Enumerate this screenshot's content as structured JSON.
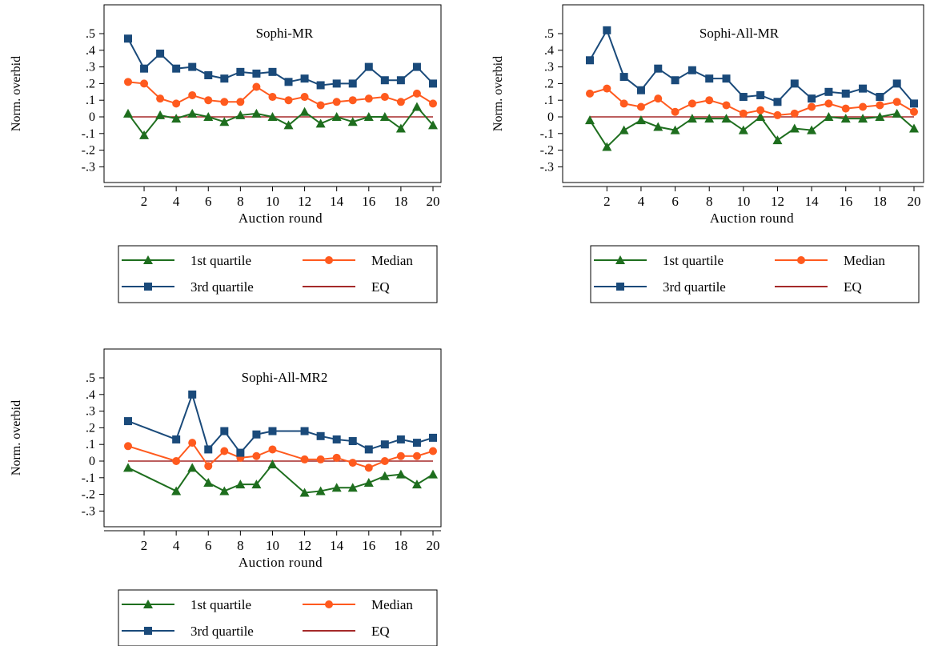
{
  "chart_data": [
    {
      "type": "line",
      "title": "Sophi-MR",
      "xlabel": "Auction round",
      "ylabel": "Norm. overbid",
      "xlim": [
        -0.5,
        20.5
      ],
      "ylim": [
        -0.35,
        0.55
      ],
      "x_ticks": [
        2,
        4,
        6,
        8,
        10,
        12,
        14,
        16,
        18,
        20
      ],
      "x_tick_labels": [
        "2",
        "4",
        "6",
        "8",
        "10",
        "12",
        "14",
        "16",
        "18",
        "20"
      ],
      "y_ticks": [
        -0.3,
        -0.2,
        -0.1,
        0,
        0.1,
        0.2,
        0.3,
        0.4,
        0.5
      ],
      "y_tick_labels": [
        "-.3",
        "-.2",
        "-.1",
        "0",
        ".1",
        ".2",
        ".3",
        ".4",
        ".5"
      ],
      "grid": false,
      "legend_position": "bottom",
      "x": [
        1,
        2,
        3,
        4,
        5,
        6,
        7,
        8,
        9,
        10,
        11,
        12,
        13,
        14,
        15,
        16,
        17,
        18,
        19,
        20
      ],
      "series": [
        {
          "name": "1st quartile",
          "color": "#1e6e1e",
          "marker": "triangle",
          "values": [
            0.02,
            -0.11,
            0.01,
            -0.01,
            0.02,
            0.0,
            -0.03,
            0.01,
            0.02,
            0.0,
            -0.05,
            0.03,
            -0.04,
            0.0,
            -0.03,
            0.0,
            0.0,
            -0.07,
            0.06,
            -0.05
          ]
        },
        {
          "name": "Median",
          "color": "#ff5a1e",
          "marker": "circle",
          "values": [
            0.21,
            0.2,
            0.11,
            0.08,
            0.13,
            0.1,
            0.09,
            0.09,
            0.18,
            0.12,
            0.1,
            0.12,
            0.07,
            0.09,
            0.1,
            0.11,
            0.12,
            0.09,
            0.14,
            0.08
          ]
        },
        {
          "name": "3rd quartile",
          "color": "#1a4a7a",
          "marker": "square",
          "values": [
            0.47,
            0.29,
            0.38,
            0.29,
            0.3,
            0.25,
            0.23,
            0.27,
            0.26,
            0.27,
            0.21,
            0.23,
            0.19,
            0.2,
            0.2,
            0.3,
            0.22,
            0.22,
            0.3,
            0.2
          ]
        },
        {
          "name": "EQ",
          "color": "#a52a2a",
          "marker": "none",
          "values": [
            0,
            0,
            0,
            0,
            0,
            0,
            0,
            0,
            0,
            0,
            0,
            0,
            0,
            0,
            0,
            0,
            0,
            0,
            0,
            0
          ]
        }
      ]
    },
    {
      "type": "line",
      "title": "Sophi-All-MR",
      "xlabel": "Auction round",
      "ylabel": "Norm. overbid",
      "xlim": [
        -0.5,
        20.5
      ],
      "ylim": [
        -0.35,
        0.55
      ],
      "x_ticks": [
        2,
        4,
        6,
        8,
        10,
        12,
        14,
        16,
        18,
        20
      ],
      "x_tick_labels": [
        "2",
        "4",
        "6",
        "8",
        "10",
        "12",
        "14",
        "16",
        "18",
        "20"
      ],
      "y_ticks": [
        -0.3,
        -0.2,
        -0.1,
        0,
        0.1,
        0.2,
        0.3,
        0.4,
        0.5
      ],
      "y_tick_labels": [
        "-.3",
        "-.2",
        "-.1",
        "0",
        ".1",
        ".2",
        ".3",
        ".4",
        ".5"
      ],
      "grid": false,
      "legend_position": "bottom",
      "x": [
        1,
        2,
        3,
        4,
        5,
        6,
        7,
        8,
        9,
        10,
        11,
        12,
        13,
        14,
        15,
        16,
        17,
        18,
        19,
        20
      ],
      "series": [
        {
          "name": "1st quartile",
          "color": "#1e6e1e",
          "marker": "triangle",
          "values": [
            -0.02,
            -0.18,
            -0.08,
            -0.02,
            -0.06,
            -0.08,
            -0.01,
            -0.01,
            -0.01,
            -0.08,
            0.0,
            -0.14,
            -0.07,
            -0.08,
            0.0,
            -0.01,
            -0.01,
            0.0,
            0.02,
            -0.07
          ]
        },
        {
          "name": "Median",
          "color": "#ff5a1e",
          "marker": "circle",
          "values": [
            0.14,
            0.17,
            0.08,
            0.06,
            0.11,
            0.03,
            0.08,
            0.1,
            0.07,
            0.02,
            0.04,
            0.01,
            0.02,
            0.06,
            0.08,
            0.05,
            0.06,
            0.07,
            0.09,
            0.03
          ]
        },
        {
          "name": "3rd quartile",
          "color": "#1a4a7a",
          "marker": "square",
          "values": [
            0.34,
            0.52,
            0.24,
            0.16,
            0.29,
            0.22,
            0.28,
            0.23,
            0.23,
            0.12,
            0.13,
            0.09,
            0.2,
            0.11,
            0.15,
            0.14,
            0.17,
            0.12,
            0.2,
            0.08
          ]
        },
        {
          "name": "EQ",
          "color": "#a52a2a",
          "marker": "none",
          "values": [
            0,
            0,
            0,
            0,
            0,
            0,
            0,
            0,
            0,
            0,
            0,
            0,
            0,
            0,
            0,
            0,
            0,
            0,
            0,
            0
          ]
        }
      ]
    },
    {
      "type": "line",
      "title": "Sophi-All-MR2",
      "xlabel": "Auction round",
      "ylabel": "Norm. overbid",
      "xlim": [
        -0.5,
        20.5
      ],
      "ylim": [
        -0.35,
        0.55
      ],
      "x_ticks": [
        2,
        4,
        6,
        8,
        10,
        12,
        14,
        16,
        18,
        20
      ],
      "x_tick_labels": [
        "2",
        "4",
        "6",
        "8",
        "10",
        "12",
        "14",
        "16",
        "18",
        "20"
      ],
      "y_ticks": [
        -0.3,
        -0.2,
        -0.1,
        0,
        0.1,
        0.2,
        0.3,
        0.4,
        0.5
      ],
      "y_tick_labels": [
        "-.3",
        "-.2",
        "-.1",
        "0",
        ".1",
        ".2",
        ".3",
        ".4",
        ".5"
      ],
      "grid": false,
      "legend_position": "bottom",
      "x": [
        1,
        4,
        5,
        6,
        7,
        8,
        9,
        10,
        12,
        13,
        14,
        15,
        16,
        17,
        18,
        19,
        20
      ],
      "series": [
        {
          "name": "1st quartile",
          "color": "#1e6e1e",
          "marker": "triangle",
          "values": [
            -0.04,
            -0.18,
            -0.04,
            -0.13,
            -0.18,
            -0.14,
            -0.14,
            -0.02,
            -0.19,
            -0.18,
            -0.16,
            -0.16,
            -0.13,
            -0.09,
            -0.08,
            -0.14,
            -0.08
          ]
        },
        {
          "name": "Median",
          "color": "#ff5a1e",
          "marker": "circle",
          "values": [
            0.09,
            0.0,
            0.11,
            -0.03,
            0.06,
            0.02,
            0.03,
            0.07,
            0.01,
            0.01,
            0.02,
            -0.01,
            -0.04,
            0.0,
            0.03,
            0.03,
            0.06
          ]
        },
        {
          "name": "3rd quartile",
          "color": "#1a4a7a",
          "marker": "square",
          "values": [
            0.24,
            0.13,
            0.4,
            0.07,
            0.18,
            0.05,
            0.16,
            0.18,
            0.18,
            0.15,
            0.13,
            0.12,
            0.07,
            0.1,
            0.13,
            0.11,
            0.14
          ]
        },
        {
          "name": "EQ",
          "color": "#a52a2a",
          "marker": "none",
          "values": [
            0,
            0,
            0,
            0,
            0,
            0,
            0,
            0,
            0,
            0,
            0,
            0,
            0,
            0,
            0,
            0,
            0
          ]
        }
      ]
    }
  ]
}
